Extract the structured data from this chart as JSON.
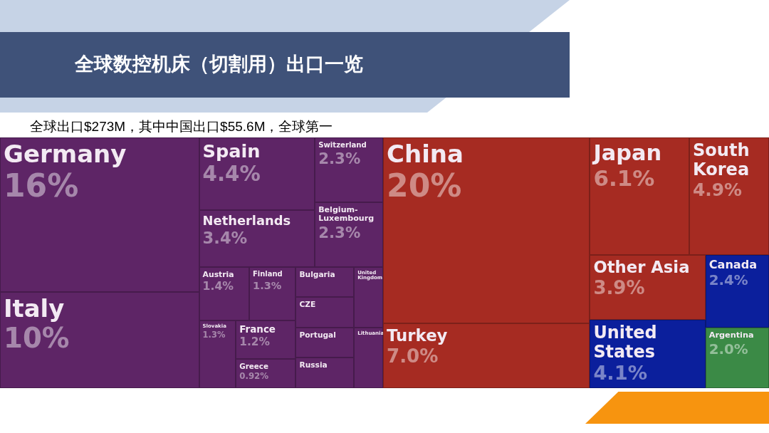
{
  "chart_data": {
    "type": "other",
    "title": "全球数控机床（切割用）出口一览",
    "subtitle": "全球出口$273M，其中中国出口$55.6M，全球第一",
    "categories": [
      "Germany",
      "Italy",
      "Spain",
      "Netherlands",
      "Switzerland",
      "Belgium-Luxembourg",
      "Austria",
      "Finland",
      "Slovakia",
      "France",
      "Greece",
      "Bulgaria",
      "CZE",
      "United Kingdom",
      "Portugal",
      "Russia",
      "Lithuania",
      "China",
      "Turkey",
      "Japan",
      "South Korea",
      "Other Asia",
      "United States",
      "Canada",
      "Argentina"
    ],
    "values": [
      16,
      10,
      4.4,
      3.4,
      2.3,
      2.3,
      1.4,
      1.3,
      1.3,
      1.2,
      0.92,
      null,
      null,
      null,
      null,
      null,
      null,
      20,
      7.0,
      6.1,
      4.9,
      3.9,
      4.1,
      2.4,
      2.0
    ],
    "value_labels": [
      "16%",
      "10%",
      "4.4%",
      "3.4%",
      "2.3%",
      "2.3%",
      "1.4%",
      "1.3%",
      "1.3%",
      "1.2%",
      "0.92%",
      null,
      null,
      null,
      null,
      null,
      null,
      "20%",
      "7.0%",
      "6.1%",
      "4.9%",
      "3.9%",
      "4.1%",
      "2.4%",
      "2.0%"
    ],
    "colors": [
      "#5e2566",
      "#5e2566",
      "#5e2566",
      "#5e2566",
      "#5e2566",
      "#5e2566",
      "#5e2566",
      "#5e2566",
      "#5e2566",
      "#5e2566",
      "#5e2566",
      "#5e2566",
      "#5e2566",
      "#5e2566",
      "#5e2566",
      "#5e2566",
      "#5e2566",
      "#a62b22",
      "#a62b22",
      "#a62b22",
      "#a62b22",
      "#a62b22",
      "#0b1f9c",
      "#0b1f9c",
      "#3b8a46"
    ]
  }
}
